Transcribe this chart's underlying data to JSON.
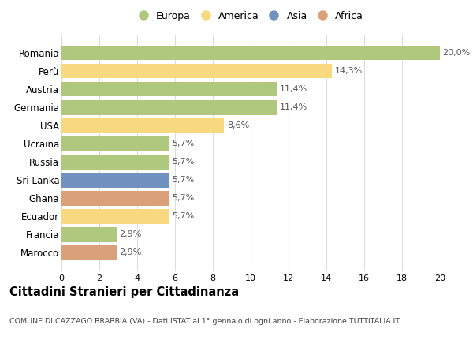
{
  "categories": [
    "Romania",
    "Perù",
    "Austria",
    "Germania",
    "USA",
    "Ucraina",
    "Russia",
    "Sri Lanka",
    "Ghana",
    "Ecuador",
    "Francia",
    "Marocco"
  ],
  "values": [
    20.0,
    14.3,
    11.4,
    11.4,
    8.6,
    5.7,
    5.7,
    5.7,
    5.7,
    5.7,
    2.9,
    2.9
  ],
  "labels": [
    "20,0%",
    "14,3%",
    "11,4%",
    "11,4%",
    "8,6%",
    "5,7%",
    "5,7%",
    "5,7%",
    "5,7%",
    "5,7%",
    "2,9%",
    "2,9%"
  ],
  "colors": [
    "#afc87e",
    "#f9d97f",
    "#afc87e",
    "#afc87e",
    "#f9d97f",
    "#afc87e",
    "#afc87e",
    "#7191c0",
    "#d9a07a",
    "#f9d97f",
    "#afc87e",
    "#d9a07a"
  ],
  "legend": [
    {
      "label": "Europa",
      "color": "#afc87e"
    },
    {
      "label": "America",
      "color": "#f9d97f"
    },
    {
      "label": "Asia",
      "color": "#7191c0"
    },
    {
      "label": "Africa",
      "color": "#d9a07a"
    }
  ],
  "xlim": [
    0,
    20
  ],
  "xticks": [
    0,
    2,
    4,
    6,
    8,
    10,
    12,
    14,
    16,
    18,
    20
  ],
  "title": "Cittadini Stranieri per Cittadinanza",
  "subtitle": "COMUNE DI CAZZAGO BRABBIA (VA) - Dati ISTAT al 1° gennaio di ogni anno - Elaborazione TUTTITALIA.IT",
  "background_color": "#ffffff",
  "grid_color": "#dddddd",
  "bar_height": 0.82
}
